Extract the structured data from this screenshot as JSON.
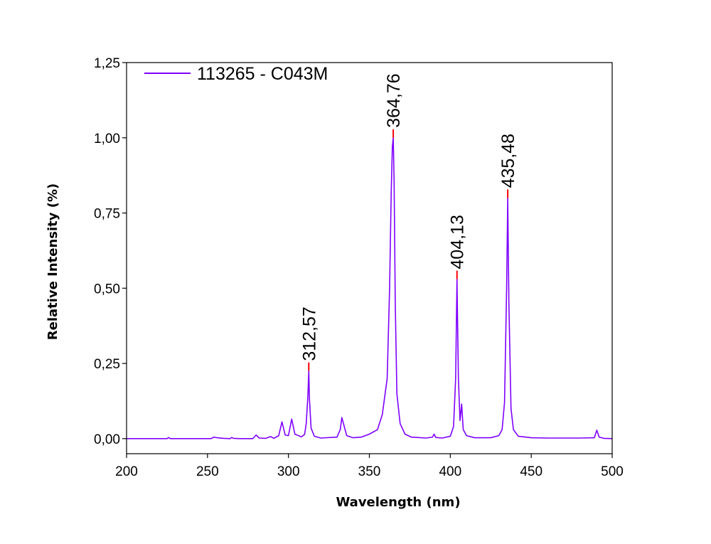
{
  "chart_data": {
    "type": "line",
    "xlabel": "Wavelength (nm)",
    "ylabel": "Relative Intensity (%)",
    "xlim": [
      200,
      500
    ],
    "ylim": [
      -0.05,
      1.25
    ],
    "xticks": [
      200,
      250,
      300,
      350,
      400,
      450,
      500
    ],
    "xtick_labels": [
      "200",
      "250",
      "300",
      "350",
      "400",
      "450",
      "500"
    ],
    "yticks": [
      0,
      0.25,
      0.5,
      0.75,
      1.0,
      1.25
    ],
    "ytick_labels": [
      "0,00",
      "0,25",
      "0,50",
      "0,75",
      "1,00",
      "1,25"
    ],
    "grid": false,
    "legend_position": "top-left",
    "series": [
      {
        "name": "113265 - C043M",
        "color": "#7f00ff",
        "peak_color": "#ff0000",
        "x": [
          200,
          225,
          226,
          227,
          240,
          252,
          254,
          256,
          260,
          264,
          265,
          266,
          270,
          278,
          280,
          282,
          286,
          289,
          291,
          294,
          296,
          298,
          300,
          302,
          304,
          308,
          310,
          311,
          312,
          312.57,
          313,
          314,
          316,
          320,
          330,
          332,
          333,
          334,
          336,
          340,
          345,
          350,
          355,
          358,
          361,
          362.5,
          363.5,
          364.2,
          364.76,
          365.3,
          366,
          367,
          369,
          372,
          376,
          385,
          389,
          390,
          391,
          395,
          400,
          402,
          403.3,
          404.13,
          405,
          406,
          407,
          408,
          410,
          415,
          425,
          430,
          432,
          433.5,
          434.8,
          435.48,
          436.2,
          437.5,
          439,
          442,
          450,
          460,
          480,
          489,
          490.5,
          492,
          495,
          500
        ],
        "y": [
          0.0,
          0.0,
          0.004,
          0.0,
          0.0,
          0.0,
          0.005,
          0.003,
          0.001,
          0.0,
          0.004,
          0.001,
          0.0,
          0.0,
          0.012,
          0.002,
          0.001,
          0.007,
          0.001,
          0.01,
          0.056,
          0.012,
          0.01,
          0.065,
          0.015,
          0.006,
          0.014,
          0.05,
          0.14,
          0.225,
          0.13,
          0.035,
          0.008,
          0.002,
          0.005,
          0.03,
          0.07,
          0.05,
          0.01,
          0.003,
          0.005,
          0.015,
          0.03,
          0.08,
          0.2,
          0.5,
          0.82,
          0.97,
          1.0,
          0.85,
          0.45,
          0.15,
          0.05,
          0.015,
          0.005,
          0.002,
          0.005,
          0.015,
          0.004,
          0.002,
          0.008,
          0.04,
          0.2,
          0.53,
          0.2,
          0.06,
          0.115,
          0.03,
          0.01,
          0.003,
          0.003,
          0.01,
          0.03,
          0.12,
          0.5,
          0.8,
          0.45,
          0.1,
          0.03,
          0.008,
          0.003,
          0.002,
          0.002,
          0.003,
          0.028,
          0.005,
          0.001,
          0.0
        ]
      }
    ],
    "annotations": [
      {
        "text": "312,57",
        "x": 312.57,
        "y": 0.225
      },
      {
        "text": "364,76",
        "x": 364.76,
        "y": 1.0
      },
      {
        "text": "404,13",
        "x": 404.13,
        "y": 0.53
      },
      {
        "text": "435,48",
        "x": 435.48,
        "y": 0.8
      }
    ]
  }
}
